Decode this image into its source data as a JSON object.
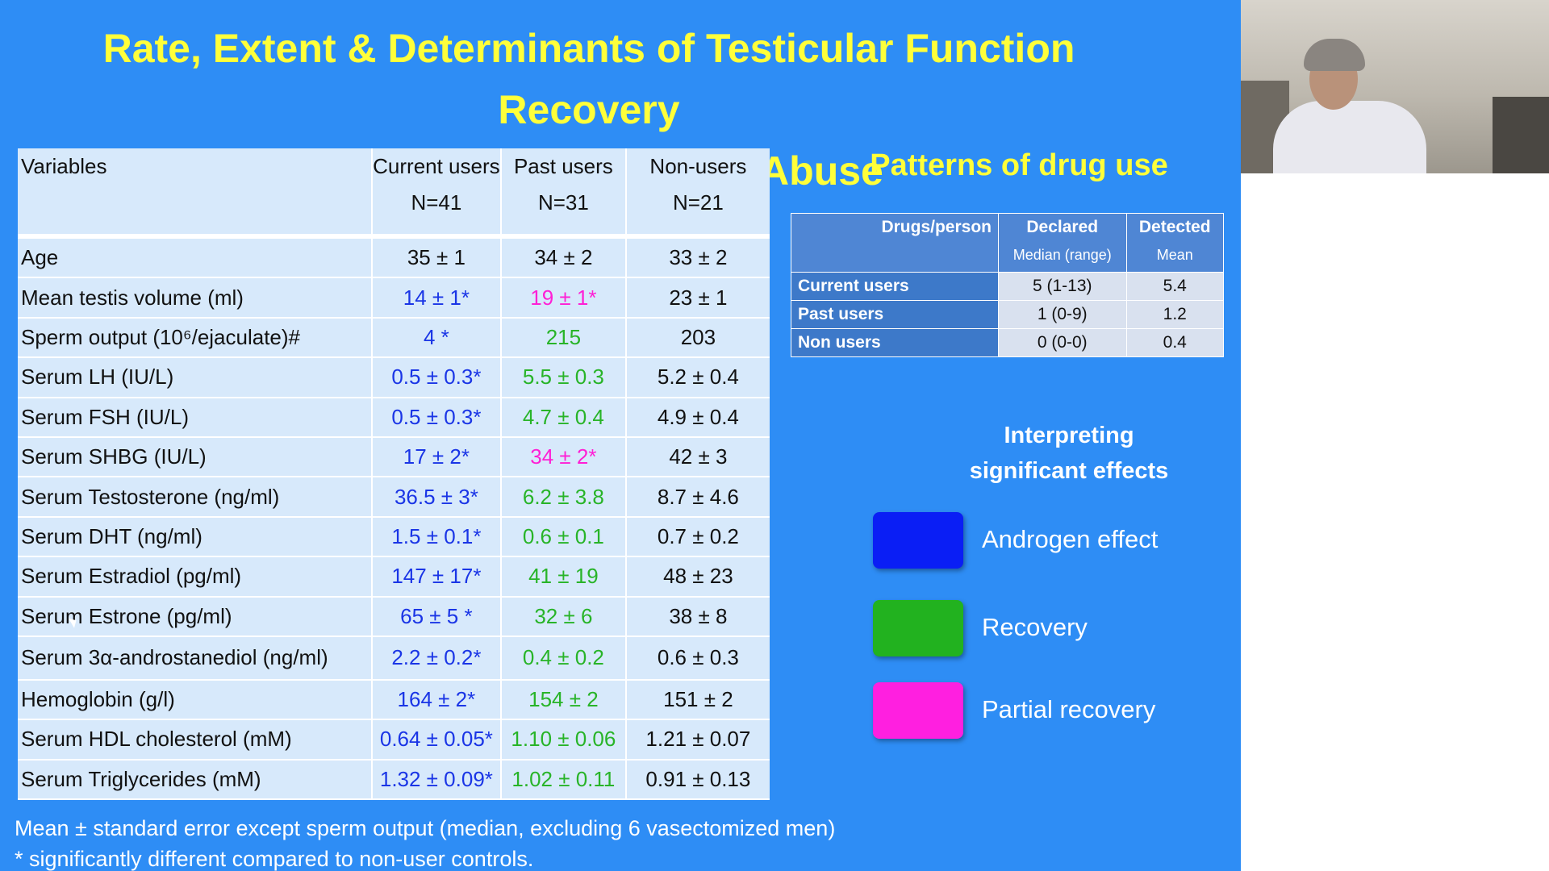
{
  "slide": {
    "title_line1": "Rate, Extent & Determinants of Testicular Function Recovery",
    "title_line2": "after Ceasing Androgen Abuse",
    "table": {
      "headers": {
        "variables": "Variables",
        "current": "Current users",
        "current_n": "N=41",
        "past": "Past users",
        "past_n": "N=31",
        "non": "Non-users",
        "non_n": "N=21"
      },
      "rows": [
        {
          "label": "Age",
          "current": "35 ± 1",
          "past": "34 ± 2",
          "non": "33 ± 2"
        },
        {
          "label": "Mean testis volume (ml)",
          "current": "14 ± 1*",
          "past": "19 ± 1*",
          "non": "23 ± 1"
        },
        {
          "label": "Sperm output (10⁶/ejaculate)#",
          "current": "4 *",
          "past": "215",
          "non": "203"
        },
        {
          "label": "Serum LH (IU/L)",
          "current": "0.5 ± 0.3*",
          "past": "5.5 ± 0.3",
          "non": "5.2 ± 0.4"
        },
        {
          "label": "Serum FSH (IU/L)",
          "current": "0.5 ± 0.3*",
          "past": "4.7 ± 0.4",
          "non": "4.9 ± 0.4"
        },
        {
          "label": "Serum SHBG (IU/L)",
          "current": "17 ± 2*",
          "past": "34 ± 2*",
          "non": "42 ± 3"
        },
        {
          "label": "Serum Testosterone (ng/ml)",
          "current": "36.5 ± 3*",
          "past": "6.2 ± 3.8",
          "non": "8.7 ± 4.6"
        },
        {
          "label": "Serum DHT (ng/ml)",
          "current": "1.5 ± 0.1*",
          "past": "0.6 ± 0.1",
          "non": "0.7 ± 0.2"
        },
        {
          "label": "Serum Estradiol (pg/ml)",
          "current": "147 ± 17*",
          "past": "41 ± 19",
          "non": "48 ± 23"
        },
        {
          "label": "Serum Estrone (pg/ml)",
          "current": "65 ± 5 *",
          "past": "32 ± 6",
          "non": "38 ± 8"
        },
        {
          "label": "Serum 3α-androstanediol (ng/ml)",
          "current": "2.2 ± 0.2*",
          "past": "0.4 ± 0.2",
          "non": "0.6 ± 0.3"
        },
        {
          "label": "Hemoglobin (g/l)",
          "current": "164 ± 2*",
          "past": "154 ± 2",
          "non": "151 ± 2"
        },
        {
          "label": "Serum HDL cholesterol (mM)",
          "current": "0.64 ± 0.05*",
          "past": "1.10 ± 0.06",
          "non": "1.21 ± 0.07"
        },
        {
          "label": "Serum Triglycerides (mM)",
          "current": "1.32 ± 0.09*",
          "past": "1.02 ± 0.11",
          "non": "0.91 ± 0.13"
        }
      ]
    },
    "footer_line1": "Mean ± standard error except sperm output (median, excluding 6 vasectomized men)",
    "footer_line2": "* significantly different compared to non-user controls.",
    "patterns": {
      "title": "Patterns of drug use",
      "headers": {
        "drugs_person": "Drugs/person",
        "declared": "Declared",
        "declared_sub": "Median (range)",
        "detected": "Detected",
        "detected_sub": "Mean"
      },
      "rows": [
        {
          "label": "Current users",
          "declared": "5 (1-13)",
          "detected": "5.4"
        },
        {
          "label": "Past users",
          "declared": "1 (0-9)",
          "detected": "1.2"
        },
        {
          "label": "Non users",
          "declared": "0 (0-0)",
          "detected": "0.4"
        }
      ]
    },
    "legend": {
      "title_line1": "Interpreting",
      "title_line2": "significant effects",
      "items": [
        {
          "label": "Androgen effect",
          "color": "#0a1ef5"
        },
        {
          "label": "Recovery",
          "color": "#22b21f"
        },
        {
          "label": "Partial recovery",
          "color": "#ff1fe0"
        }
      ]
    }
  },
  "colors": {
    "slide_bg": "#2e8df5",
    "title": "#ffff3a",
    "androgen_effect": "#1a35e6",
    "recovery": "#28b428",
    "partial_recovery": "#ff1fd5"
  }
}
